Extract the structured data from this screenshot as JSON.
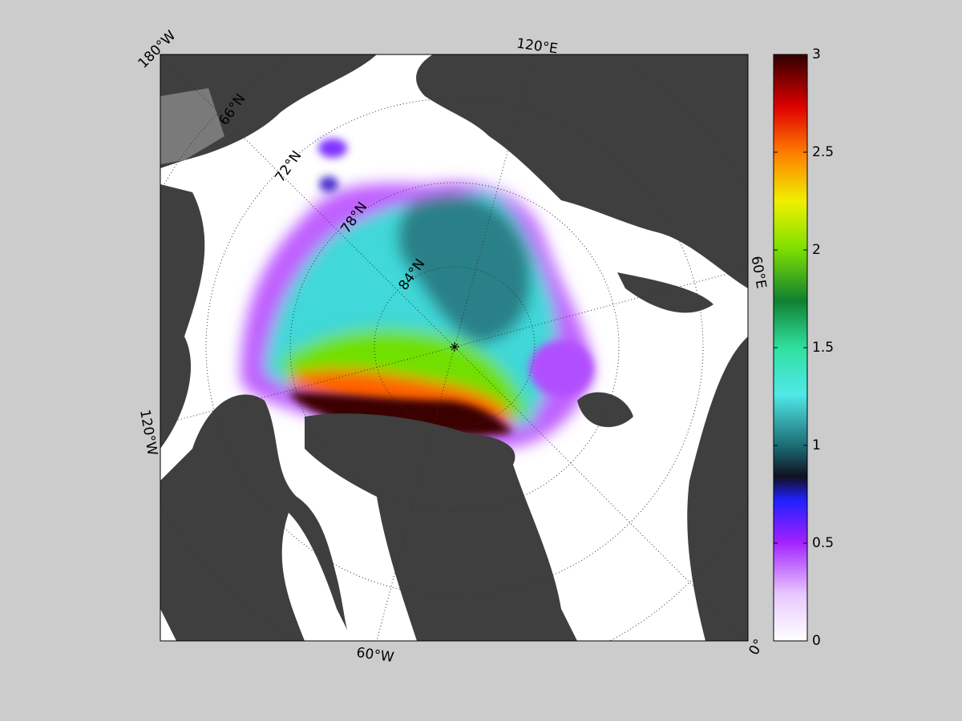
{
  "map": {
    "meridian_labels": [
      "180°W",
      "120°E",
      "60°E",
      "0°",
      "60°W",
      "120°W"
    ],
    "parallel_labels": [
      "66°N",
      "72°N",
      "78°N",
      "84°N"
    ]
  },
  "colorbar": {
    "lim": [
      0,
      3
    ],
    "ticks": [
      0,
      0.5,
      1,
      1.5,
      2,
      2.5,
      3
    ]
  }
}
